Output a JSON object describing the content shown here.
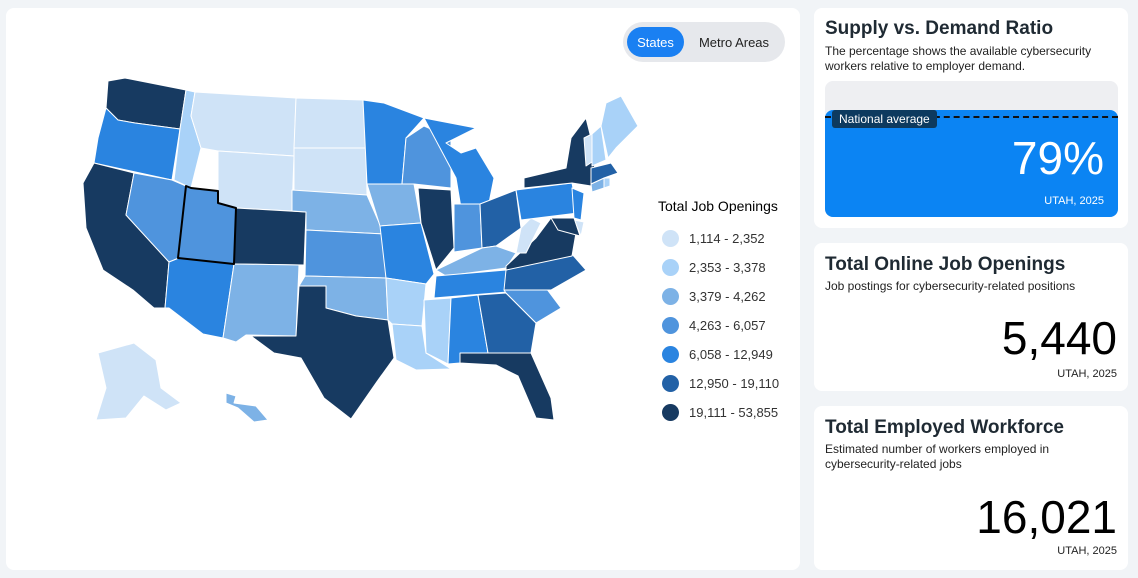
{
  "map": {
    "toggle": {
      "states_label": "States",
      "metro_label": "Metro Areas",
      "active": "States"
    },
    "selected_state": "UT",
    "legend": {
      "title": "Total Job Openings",
      "items": [
        {
          "label": "1,114 - 2,352",
          "color": "#cfe3f7"
        },
        {
          "label": "2,353 - 3,378",
          "color": "#a9d2f8"
        },
        {
          "label": "3,379 - 4,262",
          "color": "#7db2e6"
        },
        {
          "label": "4,263 - 6,057",
          "color": "#4f94dd"
        },
        {
          "label": "6,058 - 12,949",
          "color": "#2a84e0"
        },
        {
          "label": "12,950 - 19,110",
          "color": "#2261a6"
        },
        {
          "label": "19,111 - 53,855",
          "color": "#173a61"
        }
      ]
    }
  },
  "supply_demand": {
    "title": "Supply vs. Demand Ratio",
    "subtitle": "The percentage shows the available cybersecurity workers relative to employer demand.",
    "national_average_label": "National average",
    "value": "79%",
    "fill_fraction": 0.79,
    "national_average_fraction": 0.7,
    "location": "UTAH, 2025"
  },
  "job_openings": {
    "title": "Total Online Job Openings",
    "subtitle": "Job postings for cybersecurity-related positions",
    "value": "5,440",
    "location": "UTAH, 2025"
  },
  "employed_workforce": {
    "title": "Total Employed Workforce",
    "subtitle": "Estimated number of workers employed in cybersecurity-related jobs",
    "value": "16,021",
    "location": "UTAH, 2025"
  }
}
